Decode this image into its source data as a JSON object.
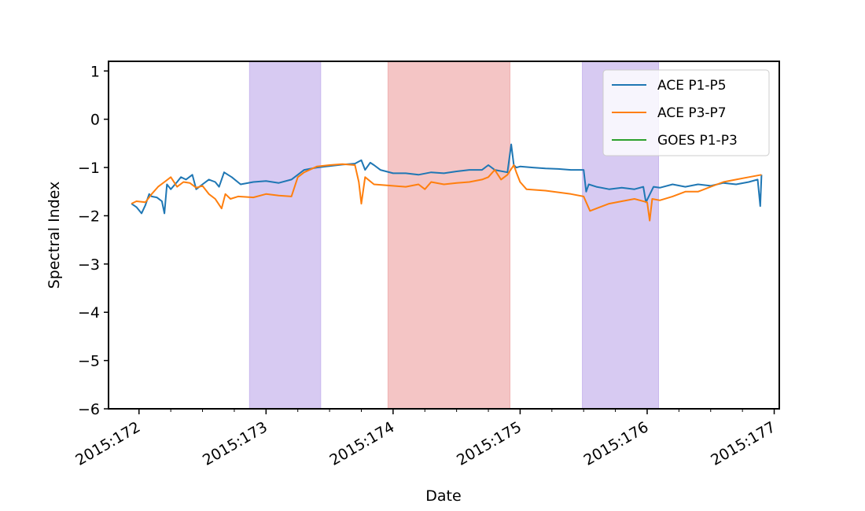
{
  "chart_data": {
    "type": "line",
    "title": "",
    "xlabel": "Date",
    "ylabel": "Spectral Index",
    "xlim": [
      171.76,
      177.04
    ],
    "ylim": [
      -6,
      1.2
    ],
    "x_ticks": [
      {
        "value": 172,
        "label": "2015:172"
      },
      {
        "value": 173,
        "label": "2015:173"
      },
      {
        "value": 174,
        "label": "2015:174"
      },
      {
        "value": 175,
        "label": "2015:175"
      },
      {
        "value": 176,
        "label": "2015:176"
      },
      {
        "value": 177,
        "label": "2015:177"
      }
    ],
    "y_ticks": [
      {
        "value": 1,
        "label": "1"
      },
      {
        "value": 0,
        "label": "0"
      },
      {
        "value": -1,
        "label": "−1"
      },
      {
        "value": -2,
        "label": "−2"
      },
      {
        "value": -3,
        "label": "−3"
      },
      {
        "value": -4,
        "label": "−4"
      },
      {
        "value": -5,
        "label": "−5"
      },
      {
        "value": -6,
        "label": "−6"
      }
    ],
    "shaded_regions": [
      {
        "x0": 172.87,
        "x1": 173.43,
        "color": "#c9b8ee"
      },
      {
        "x0": 173.96,
        "x1": 174.92,
        "color": "#f0b2b2"
      },
      {
        "x0": 175.49,
        "x1": 176.09,
        "color": "#c9b8ee"
      }
    ],
    "legend_position": "upper right",
    "grid": false,
    "series": [
      {
        "name": "ACE P1-P5",
        "color": "#1f77b4",
        "x": [
          171.94,
          171.98,
          172.02,
          172.05,
          172.08,
          172.1,
          172.14,
          172.18,
          172.2,
          172.22,
          172.25,
          172.3,
          172.33,
          172.37,
          172.42,
          172.45,
          172.5,
          172.55,
          172.6,
          172.63,
          172.67,
          172.7,
          172.73,
          172.8,
          172.9,
          173.0,
          173.1,
          173.2,
          173.3,
          173.4,
          173.5,
          173.6,
          173.7,
          173.75,
          173.78,
          173.82,
          173.85,
          173.9,
          174.0,
          174.1,
          174.2,
          174.3,
          174.4,
          174.5,
          174.6,
          174.7,
          174.75,
          174.8,
          174.9,
          174.93,
          174.95,
          174.97,
          175.0,
          175.1,
          175.2,
          175.3,
          175.4,
          175.5,
          175.52,
          175.54,
          175.6,
          175.7,
          175.8,
          175.9,
          175.97,
          175.99,
          176.05,
          176.1,
          176.2,
          176.3,
          176.4,
          176.5,
          176.6,
          176.7,
          176.8,
          176.87,
          176.89,
          176.9
        ],
        "values": [
          -1.75,
          -1.82,
          -1.95,
          -1.78,
          -1.55,
          -1.6,
          -1.62,
          -1.7,
          -1.95,
          -1.35,
          -1.45,
          -1.3,
          -1.2,
          -1.25,
          -1.15,
          -1.45,
          -1.35,
          -1.25,
          -1.3,
          -1.4,
          -1.1,
          -1.15,
          -1.2,
          -1.35,
          -1.3,
          -1.28,
          -1.32,
          -1.25,
          -1.05,
          -1.0,
          -0.97,
          -0.94,
          -0.92,
          -0.85,
          -1.05,
          -0.9,
          -0.95,
          -1.05,
          -1.12,
          -1.12,
          -1.15,
          -1.1,
          -1.12,
          -1.08,
          -1.05,
          -1.05,
          -0.95,
          -1.05,
          -1.1,
          -0.52,
          -0.95,
          -1.0,
          -0.98,
          -1.0,
          -1.02,
          -1.03,
          -1.05,
          -1.05,
          -1.5,
          -1.35,
          -1.4,
          -1.45,
          -1.42,
          -1.45,
          -1.4,
          -1.72,
          -1.4,
          -1.42,
          -1.35,
          -1.4,
          -1.35,
          -1.38,
          -1.32,
          -1.35,
          -1.3,
          -1.25,
          -1.8,
          -1.15
        ]
      },
      {
        "name": "ACE P3-P7",
        "color": "#ff7f0e",
        "x": [
          171.94,
          171.98,
          172.05,
          172.1,
          172.15,
          172.2,
          172.25,
          172.3,
          172.35,
          172.4,
          172.45,
          172.5,
          172.55,
          172.6,
          172.65,
          172.68,
          172.72,
          172.78,
          172.9,
          173.0,
          173.1,
          173.2,
          173.25,
          173.3,
          173.4,
          173.5,
          173.6,
          173.7,
          173.73,
          173.75,
          173.78,
          173.85,
          174.0,
          174.1,
          174.2,
          174.25,
          174.3,
          174.4,
          174.5,
          174.6,
          174.7,
          174.75,
          174.8,
          174.85,
          174.9,
          174.95,
          174.97,
          175.0,
          175.05,
          175.2,
          175.4,
          175.5,
          175.55,
          175.6,
          175.7,
          175.8,
          175.9,
          176.0,
          176.02,
          176.04,
          176.1,
          176.2,
          176.3,
          176.4,
          176.5,
          176.6,
          176.7,
          176.8,
          176.9
        ],
        "values": [
          -1.75,
          -1.7,
          -1.72,
          -1.55,
          -1.4,
          -1.3,
          -1.2,
          -1.4,
          -1.3,
          -1.32,
          -1.42,
          -1.38,
          -1.55,
          -1.65,
          -1.85,
          -1.55,
          -1.65,
          -1.6,
          -1.62,
          -1.55,
          -1.58,
          -1.6,
          -1.2,
          -1.1,
          -0.98,
          -0.95,
          -0.93,
          -0.95,
          -1.3,
          -1.75,
          -1.2,
          -1.35,
          -1.38,
          -1.4,
          -1.35,
          -1.45,
          -1.3,
          -1.35,
          -1.32,
          -1.3,
          -1.25,
          -1.2,
          -1.05,
          -1.25,
          -1.15,
          -0.95,
          -1.1,
          -1.3,
          -1.45,
          -1.48,
          -1.55,
          -1.6,
          -1.9,
          -1.85,
          -1.75,
          -1.7,
          -1.65,
          -1.72,
          -2.1,
          -1.65,
          -1.68,
          -1.6,
          -1.5,
          -1.5,
          -1.4,
          -1.3,
          -1.25,
          -1.2,
          -1.15
        ]
      },
      {
        "name": "GOES P1-P3",
        "color": "#2ca02c",
        "x": [],
        "values": []
      }
    ]
  }
}
